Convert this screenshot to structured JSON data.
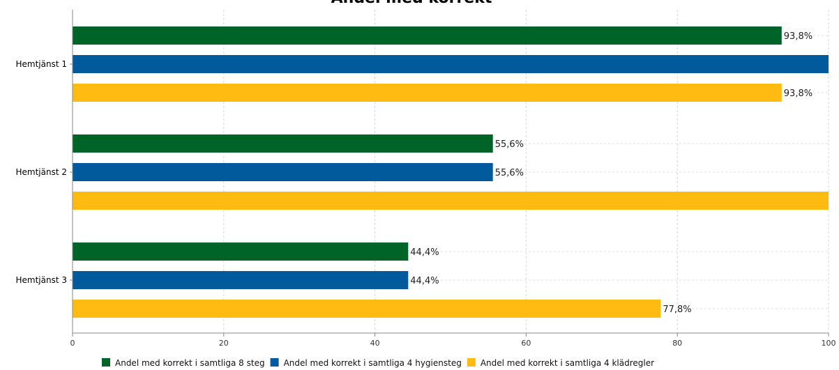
{
  "chart_data": {
    "type": "bar",
    "orientation": "horizontal",
    "title": "Andel med korrekt",
    "categories": [
      "Hemtjänst 1",
      "Hemtjänst 2",
      "Hemtjänst 3"
    ],
    "series": [
      {
        "name": "Andel med korrekt i samtliga 8 steg",
        "values": [
          93.8,
          55.6,
          44.4
        ],
        "labels": [
          "93,8%",
          "55,6%",
          "44,4%"
        ],
        "color": "#006428"
      },
      {
        "name": "Andel med korrekt i samtliga 4 hygiensteg",
        "values": [
          100,
          55.6,
          44.4
        ],
        "labels": [
          "",
          "55,6%",
          "44,4%"
        ],
        "color": "#005a9b"
      },
      {
        "name": "Andel med korrekt i samtliga 4 klädregler",
        "values": [
          93.8,
          100,
          77.8
        ],
        "labels": [
          "93,8%",
          "",
          "77,8%"
        ],
        "color": "#ffbb11"
      }
    ],
    "xlim": [
      0,
      100
    ],
    "xticks": [
      0,
      20,
      40,
      60,
      80,
      100
    ],
    "xtick_labels": [
      "0",
      "20",
      "40",
      "60",
      "80",
      "100"
    ],
    "grid": true,
    "legend_position": "bottom"
  }
}
